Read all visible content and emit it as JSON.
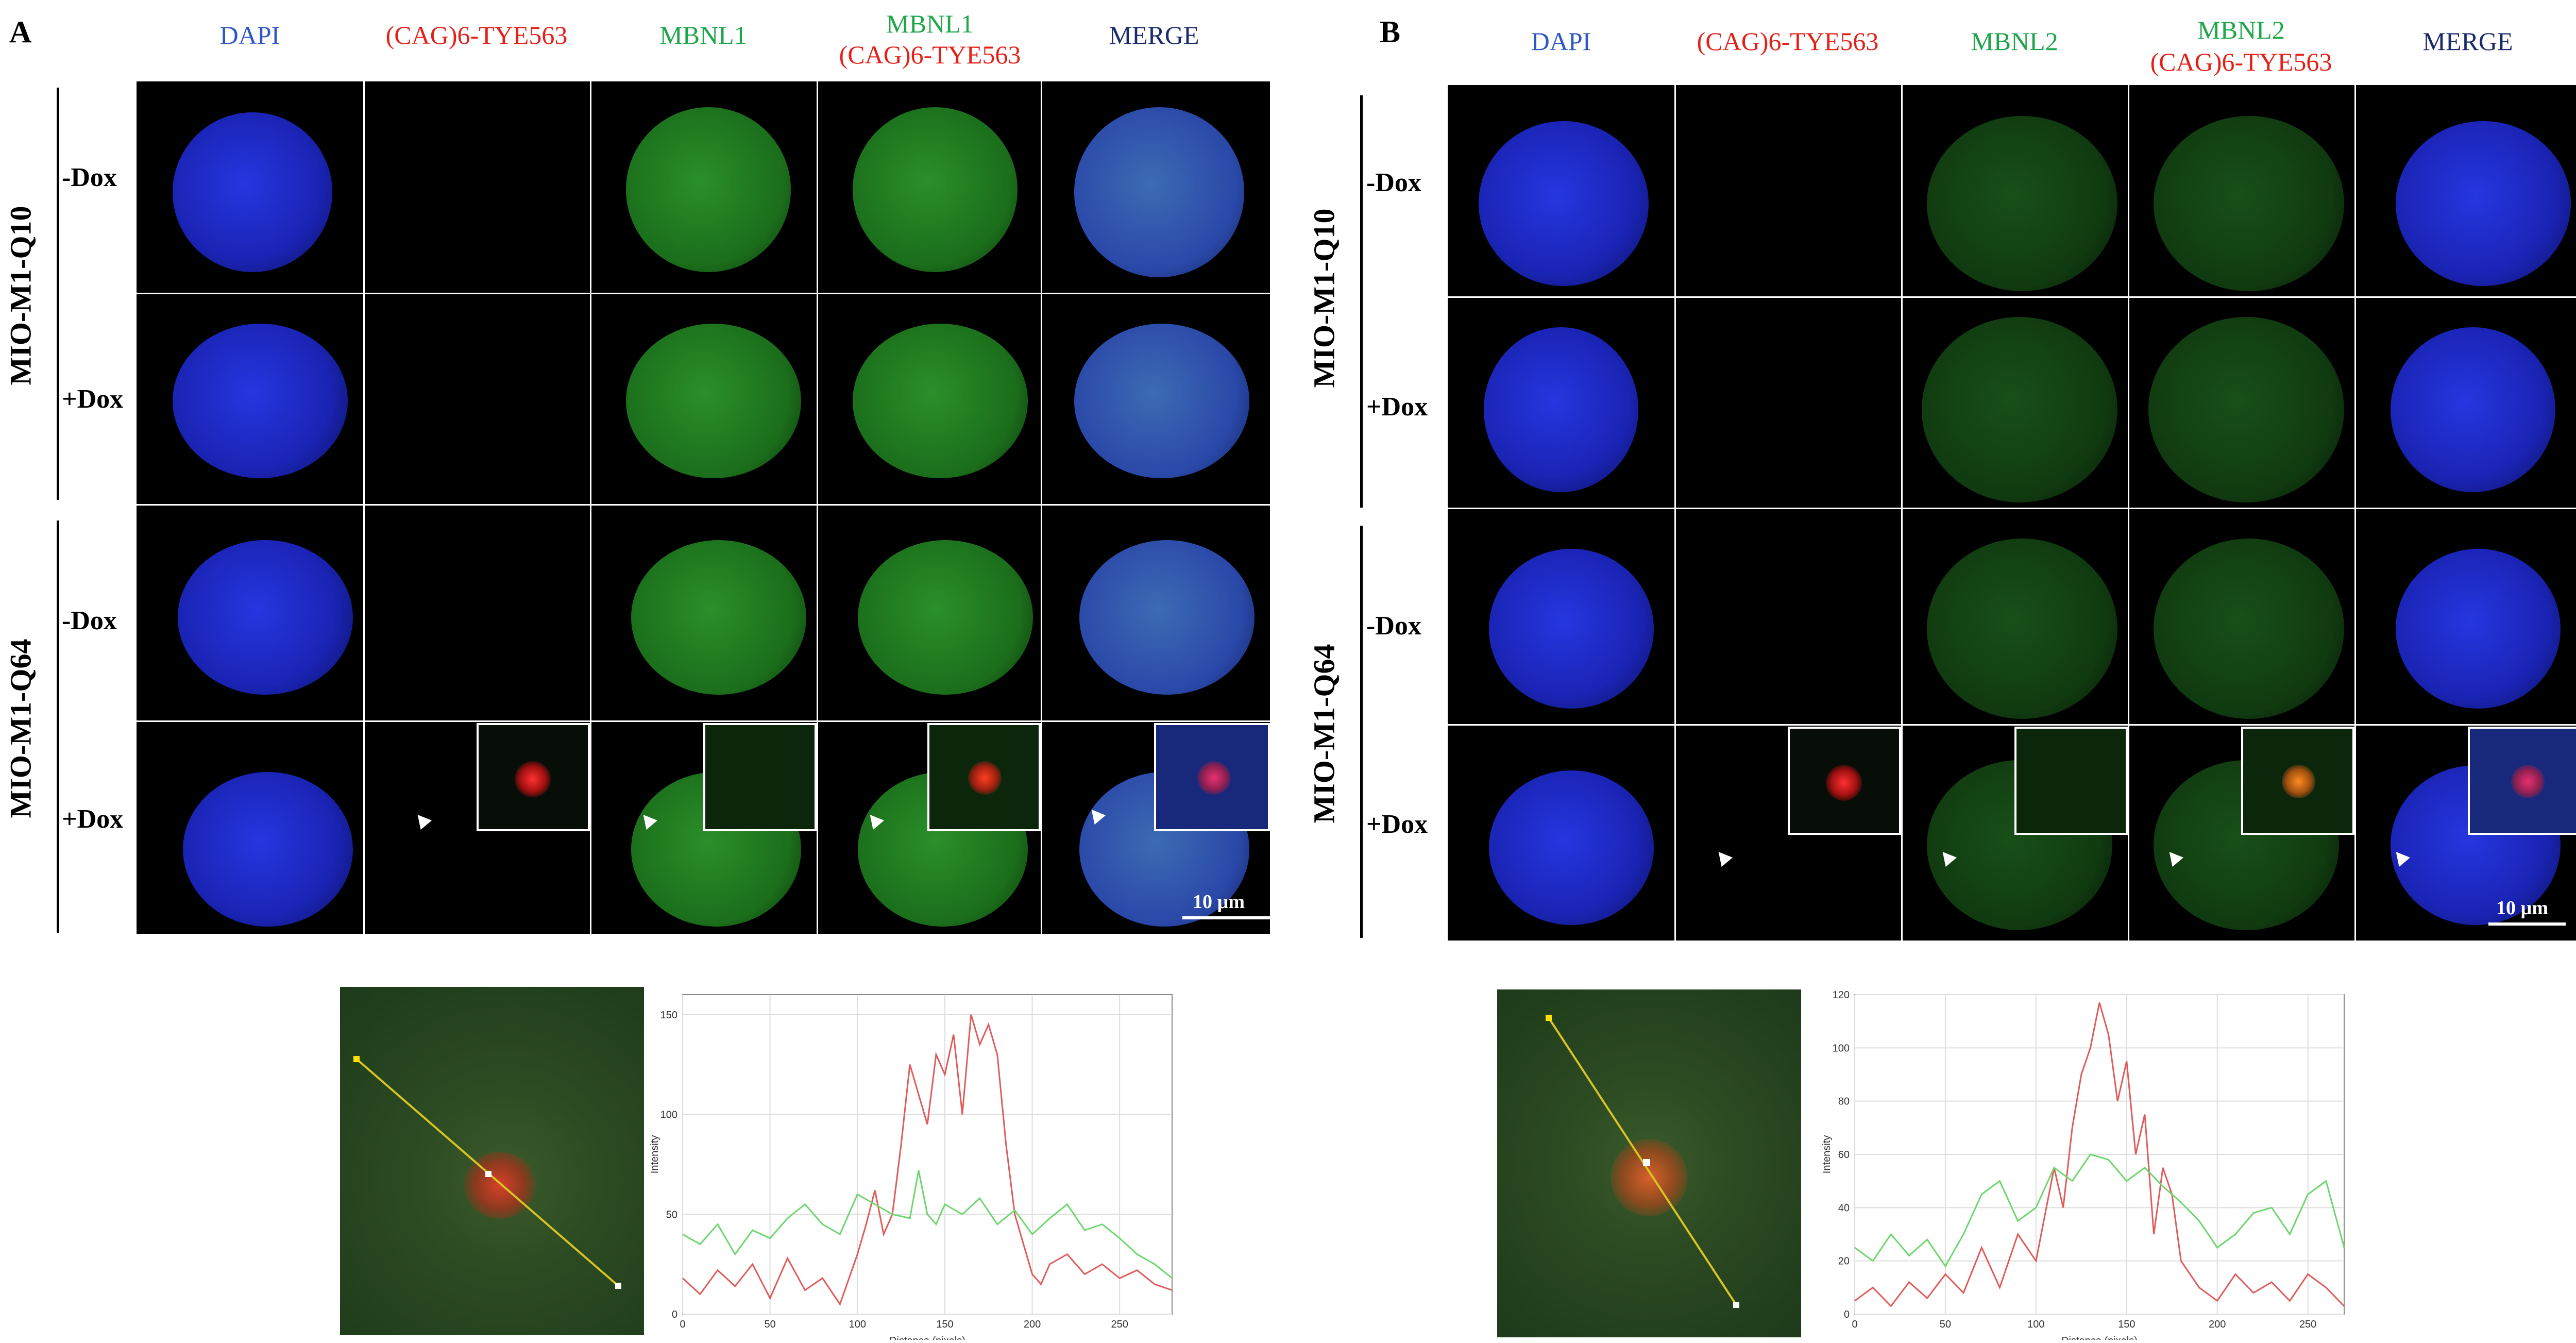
{
  "colors": {
    "dapi_header": "#2f56c7",
    "red_header": "#e32119",
    "green_header": "#1fa64a",
    "merge_header": "#1b2a6b",
    "nucleus_blue": "#1c2ad0",
    "nucleus_green": "#1f7a1f",
    "red_signal": "#e0331f",
    "trace_red": "#e05b5b",
    "trace_green": "#6ed66e",
    "line_yellow": "#d9c521"
  },
  "panel_a": {
    "letter": "A",
    "headers": [
      "DAPI",
      "(CAG)6-TYE563",
      "MBNL1",
      "MBNL1",
      "(CAG)6-TYE563",
      "MERGE"
    ],
    "group_top": "MIO-M1-Q10",
    "group_bottom": "MIO-M1-Q64",
    "conditions": [
      "-Dox",
      "+Dox",
      "-Dox",
      "+Dox"
    ],
    "scale": "10 µm"
  },
  "panel_b": {
    "letter": "B",
    "headers": [
      "DAPI",
      "(CAG)6-TYE563",
      "MBNL2",
      "MBNL2",
      "(CAG)6-TYE563",
      "MERGE"
    ],
    "group_top": "MIO-M1-Q10",
    "group_bottom": "MIO-M1-Q64",
    "conditions": [
      "-Dox",
      "+Dox",
      "-Dox",
      "+Dox"
    ],
    "scale": "10 µm"
  },
  "chart_data": [
    {
      "type": "line",
      "xlabel": "Distance (pixels)",
      "ylabel": "Intensity",
      "xlim": [
        0,
        280
      ],
      "ylim": [
        0,
        160
      ],
      "xticks": [
        0,
        50,
        100,
        150,
        200,
        250
      ],
      "yticks": [
        0,
        50,
        100,
        150
      ],
      "series": [
        {
          "color": "#e05b5b",
          "x": [
            0,
            10,
            20,
            30,
            40,
            50,
            60,
            70,
            80,
            90,
            100,
            105,
            110,
            115,
            120,
            125,
            130,
            135,
            140,
            145,
            150,
            155,
            160,
            165,
            170,
            175,
            180,
            185,
            190,
            195,
            200,
            205,
            210,
            220,
            230,
            240,
            250,
            260,
            270,
            280
          ],
          "y": [
            18,
            10,
            22,
            14,
            25,
            8,
            28,
            12,
            18,
            5,
            30,
            45,
            62,
            40,
            50,
            85,
            125,
            110,
            95,
            130,
            120,
            140,
            100,
            150,
            135,
            145,
            130,
            85,
            50,
            35,
            20,
            15,
            25,
            30,
            20,
            25,
            18,
            22,
            15,
            12
          ]
        },
        {
          "color": "#6ed66e",
          "x": [
            0,
            10,
            20,
            30,
            40,
            50,
            60,
            70,
            80,
            90,
            100,
            110,
            120,
            130,
            135,
            140,
            145,
            150,
            160,
            170,
            180,
            190,
            200,
            210,
            220,
            230,
            240,
            250,
            260,
            270,
            280
          ],
          "y": [
            40,
            35,
            45,
            30,
            42,
            38,
            48,
            55,
            45,
            40,
            60,
            55,
            50,
            48,
            72,
            50,
            45,
            55,
            50,
            58,
            45,
            52,
            40,
            48,
            55,
            42,
            45,
            38,
            30,
            25,
            18
          ]
        }
      ]
    },
    {
      "type": "line",
      "xlabel": "Distance (pixels)",
      "ylabel": "Intensity",
      "xlim": [
        0,
        270
      ],
      "ylim": [
        0,
        120
      ],
      "xticks": [
        0,
        50,
        100,
        150,
        200,
        250
      ],
      "yticks": [
        0,
        20,
        40,
        60,
        80,
        100,
        120
      ],
      "series": [
        {
          "color": "#e05b5b",
          "x": [
            0,
            10,
            20,
            30,
            40,
            50,
            60,
            70,
            80,
            90,
            100,
            110,
            115,
            120,
            125,
            130,
            135,
            140,
            145,
            150,
            155,
            160,
            165,
            170,
            175,
            180,
            190,
            200,
            210,
            220,
            230,
            240,
            250,
            260,
            270
          ],
          "y": [
            5,
            10,
            3,
            12,
            6,
            15,
            8,
            25,
            10,
            30,
            20,
            55,
            40,
            70,
            90,
            100,
            117,
            105,
            80,
            95,
            60,
            75,
            30,
            55,
            45,
            20,
            10,
            5,
            15,
            8,
            12,
            5,
            15,
            10,
            3
          ]
        },
        {
          "color": "#6ed66e",
          "x": [
            0,
            10,
            20,
            30,
            40,
            50,
            60,
            70,
            80,
            90,
            100,
            110,
            120,
            130,
            140,
            150,
            160,
            170,
            180,
            190,
            200,
            210,
            220,
            230,
            240,
            250,
            260,
            270
          ],
          "y": [
            25,
            20,
            30,
            22,
            28,
            18,
            30,
            45,
            50,
            35,
            40,
            55,
            50,
            60,
            58,
            50,
            55,
            48,
            42,
            35,
            25,
            30,
            38,
            40,
            30,
            45,
            50,
            25
          ]
        }
      ]
    }
  ]
}
